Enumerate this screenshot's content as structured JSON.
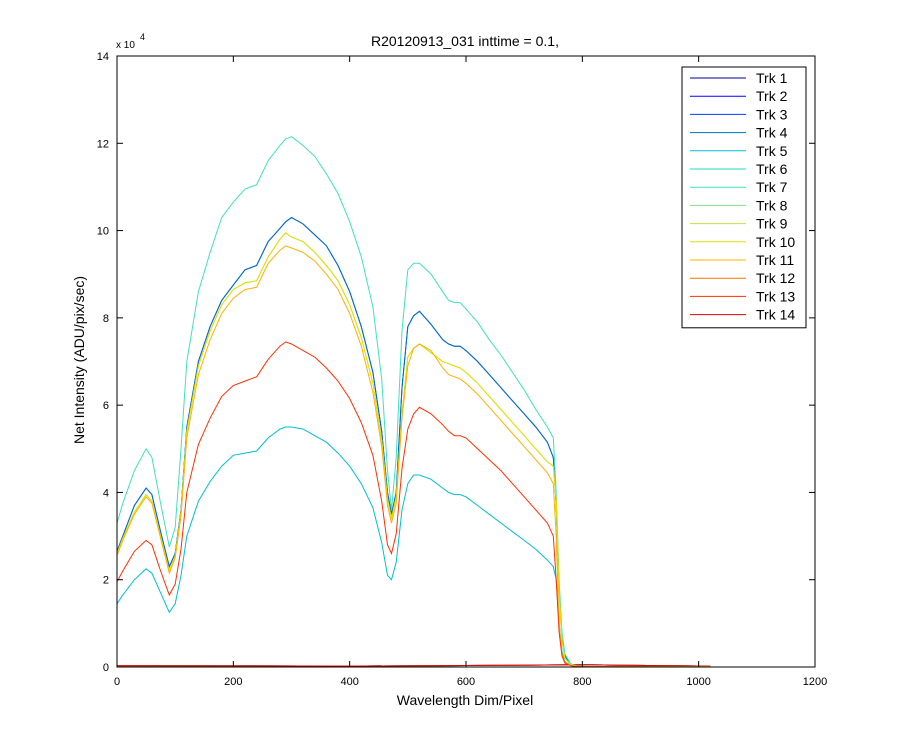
{
  "chart_data": {
    "type": "line",
    "title": "R20120913_031 inttime = 0.1,",
    "xlabel": "Wavelength Dim/Pixel",
    "ylabel": "Net Intensity (ADU/pix/sec)",
    "xlim": [
      0,
      1200
    ],
    "ylim": [
      0,
      140000
    ],
    "xticks": [
      0,
      200,
      400,
      600,
      800,
      1000,
      1200
    ],
    "yticks": [
      0,
      2,
      4,
      6,
      8,
      10,
      12,
      14
    ],
    "y_exponent_label": "x 10",
    "y_exponent": "4",
    "grid": false,
    "legend_position": "top-right",
    "series": [
      {
        "name": "Trk 1",
        "color": "#00008f",
        "profile": "zero"
      },
      {
        "name": "Trk 2",
        "color": "#0000ff",
        "profile": "zero"
      },
      {
        "name": "Trk 3",
        "color": "#0040ff",
        "profile": "A"
      },
      {
        "name": "Trk 4",
        "color": "#0070c0",
        "profile": "A"
      },
      {
        "name": "Trk 5",
        "color": "#00bfd0",
        "profile": "E"
      },
      {
        "name": "Trk 6",
        "color": "#20d8c0",
        "profile": "zero"
      },
      {
        "name": "Trk 7",
        "color": "#40e0c0",
        "profile": "B"
      },
      {
        "name": "Trk 8",
        "color": "#80e080",
        "profile": "zero"
      },
      {
        "name": "Trk 9",
        "color": "#c0e040",
        "profile": "C"
      },
      {
        "name": "Trk 10",
        "color": "#e0e000",
        "profile": "C"
      },
      {
        "name": "Trk 11",
        "color": "#ffb000",
        "profile": "D"
      },
      {
        "name": "Trk 12",
        "color": "#ff7000",
        "profile": "zero"
      },
      {
        "name": "Trk 13",
        "color": "#ff3000",
        "profile": "F"
      },
      {
        "name": "Trk 14",
        "color": "#e00000",
        "profile": "zero"
      }
    ],
    "profiles": {
      "A": {
        "x": [
          0,
          10,
          30,
          50,
          60,
          75,
          90,
          100,
          110,
          120,
          140,
          160,
          180,
          200,
          220,
          240,
          260,
          280,
          290,
          300,
          320,
          340,
          360,
          380,
          400,
          420,
          440,
          455,
          465,
          472,
          480,
          490,
          500,
          510,
          520,
          540,
          560,
          570,
          580,
          590,
          600,
          620,
          640,
          660,
          680,
          700,
          720,
          740,
          750,
          755,
          760,
          765,
          770,
          780,
          790,
          800,
          820,
          900,
          1020
        ],
        "y": [
          26500,
          30000,
          37000,
          41000,
          39500,
          31000,
          23000,
          26000,
          36000,
          55000,
          70000,
          78000,
          84000,
          87500,
          91000,
          92000,
          97500,
          100500,
          102000,
          103000,
          101500,
          99000,
          96500,
          92000,
          86000,
          78000,
          67500,
          54000,
          40000,
          35000,
          40000,
          64000,
          78000,
          80500,
          81500,
          78500,
          75000,
          74000,
          73500,
          73500,
          72500,
          70000,
          67000,
          64000,
          61000,
          58000,
          55000,
          51500,
          48000,
          37000,
          18000,
          7000,
          2500,
          600,
          200,
          100,
          80,
          60,
          40
        ]
      },
      "B": {
        "x": [
          0,
          10,
          30,
          50,
          60,
          75,
          90,
          100,
          110,
          120,
          140,
          160,
          180,
          200,
          220,
          240,
          260,
          280,
          290,
          300,
          320,
          340,
          360,
          380,
          400,
          420,
          440,
          455,
          465,
          472,
          480,
          490,
          500,
          510,
          520,
          540,
          560,
          570,
          580,
          590,
          600,
          620,
          640,
          660,
          680,
          700,
          720,
          740,
          750,
          755,
          760,
          765,
          770,
          780,
          790,
          800,
          820,
          900,
          1020
        ],
        "y": [
          33000,
          37500,
          45000,
          50000,
          48000,
          37500,
          27500,
          32000,
          50000,
          70000,
          86000,
          95000,
          103000,
          106500,
          109500,
          110500,
          116000,
          119500,
          121000,
          121500,
          119500,
          117000,
          113000,
          108500,
          102000,
          94000,
          82500,
          66000,
          45000,
          36000,
          48000,
          77000,
          91000,
          92500,
          92500,
          90000,
          86000,
          84000,
          83500,
          83500,
          82000,
          79000,
          75000,
          71500,
          67500,
          63500,
          59000,
          55000,
          52500,
          40000,
          20000,
          8000,
          3000,
          700,
          250,
          150,
          100,
          80,
          60
        ]
      },
      "C": {
        "x": [
          0,
          10,
          30,
          50,
          60,
          75,
          90,
          100,
          110,
          120,
          140,
          160,
          180,
          200,
          220,
          240,
          260,
          280,
          290,
          300,
          320,
          340,
          360,
          380,
          400,
          420,
          440,
          455,
          465,
          472,
          480,
          490,
          500,
          510,
          520,
          540,
          560,
          570,
          580,
          590,
          600,
          620,
          640,
          660,
          680,
          700,
          720,
          740,
          750,
          755,
          760,
          765,
          770,
          780,
          790,
          800,
          820,
          900,
          1020
        ],
        "y": [
          26000,
          29500,
          35500,
          39500,
          38000,
          30000,
          22000,
          25500,
          35500,
          54000,
          69000,
          77000,
          83000,
          86500,
          88000,
          88500,
          94000,
          98000,
          99500,
          98500,
          97500,
          95000,
          92000,
          88500,
          83000,
          75500,
          65000,
          52000,
          38500,
          34000,
          39000,
          58000,
          71000,
          73000,
          74000,
          72000,
          70000,
          69500,
          69000,
          68500,
          67500,
          65000,
          62000,
          59000,
          56000,
          53000,
          50000,
          47000,
          46000,
          38000,
          17000,
          6000,
          2000,
          500,
          200,
          100,
          80,
          60,
          40
        ]
      },
      "D": {
        "x": [
          0,
          10,
          30,
          50,
          60,
          75,
          90,
          100,
          110,
          120,
          140,
          160,
          180,
          200,
          220,
          240,
          260,
          280,
          290,
          300,
          320,
          340,
          360,
          380,
          400,
          420,
          440,
          455,
          465,
          472,
          480,
          490,
          500,
          510,
          520,
          540,
          560,
          570,
          580,
          590,
          600,
          620,
          640,
          660,
          680,
          700,
          720,
          740,
          750,
          755,
          760,
          765,
          770,
          780,
          790,
          800,
          820,
          900,
          1020
        ],
        "y": [
          25500,
          29000,
          35000,
          39000,
          37500,
          29500,
          21500,
          25000,
          34500,
          52500,
          67000,
          75000,
          81000,
          84500,
          86500,
          87000,
          92500,
          95500,
          96500,
          96000,
          95000,
          93000,
          90000,
          86500,
          81000,
          73500,
          63000,
          50500,
          37000,
          33000,
          37500,
          57000,
          69000,
          73000,
          74000,
          72500,
          68500,
          67000,
          66500,
          66000,
          65000,
          62500,
          59500,
          56500,
          53500,
          50500,
          47500,
          44500,
          42000,
          30000,
          10000,
          3000,
          1000,
          400,
          150,
          100,
          80,
          60,
          40
        ]
      },
      "E": {
        "x": [
          0,
          10,
          30,
          50,
          60,
          75,
          90,
          100,
          110,
          120,
          140,
          160,
          180,
          200,
          220,
          240,
          260,
          280,
          290,
          300,
          320,
          340,
          360,
          380,
          400,
          420,
          440,
          455,
          465,
          472,
          480,
          490,
          500,
          510,
          520,
          540,
          560,
          570,
          580,
          590,
          600,
          620,
          640,
          660,
          680,
          700,
          720,
          740,
          750,
          755,
          760,
          765,
          770,
          780,
          790,
          800,
          820,
          900,
          1020
        ],
        "y": [
          14500,
          16500,
          20000,
          22500,
          21500,
          17000,
          12500,
          14500,
          21000,
          30000,
          38000,
          42500,
          46000,
          48500,
          49000,
          49500,
          52500,
          54500,
          55000,
          55000,
          54500,
          53000,
          51500,
          49000,
          46000,
          42000,
          36500,
          28500,
          21000,
          20000,
          24000,
          36000,
          42000,
          44000,
          44000,
          43000,
          41000,
          40000,
          39500,
          39500,
          39000,
          37000,
          35000,
          33000,
          31000,
          29000,
          27000,
          24500,
          23000,
          20000,
          10000,
          3500,
          1200,
          400,
          150,
          100,
          80,
          60,
          40
        ]
      },
      "F": {
        "x": [
          0,
          10,
          30,
          50,
          60,
          75,
          90,
          100,
          110,
          120,
          140,
          160,
          180,
          200,
          220,
          240,
          260,
          280,
          290,
          300,
          320,
          340,
          360,
          380,
          400,
          420,
          440,
          455,
          465,
          472,
          480,
          490,
          500,
          510,
          520,
          540,
          560,
          570,
          580,
          590,
          600,
          620,
          640,
          660,
          680,
          700,
          720,
          740,
          750,
          755,
          760,
          765,
          770,
          780,
          790,
          800,
          820,
          900,
          1020
        ],
        "y": [
          19500,
          22000,
          26500,
          29000,
          28000,
          22000,
          16500,
          19000,
          27000,
          40000,
          51000,
          57000,
          62000,
          64500,
          65500,
          66500,
          70500,
          73500,
          74500,
          74000,
          72500,
          71000,
          68500,
          65500,
          61500,
          56000,
          48500,
          38000,
          28000,
          26000,
          30500,
          45500,
          54500,
          58000,
          59500,
          58000,
          55500,
          54000,
          53000,
          53000,
          52500,
          50000,
          47500,
          45000,
          42000,
          39000,
          36000,
          33000,
          30000,
          20000,
          8000,
          2500,
          900,
          300,
          120,
          80,
          60,
          40,
          30
        ]
      },
      "zero": {
        "x": [
          0,
          200,
          400,
          600,
          800,
          1020
        ],
        "y": [
          300,
          250,
          200,
          350,
          500,
          200
        ]
      }
    }
  }
}
